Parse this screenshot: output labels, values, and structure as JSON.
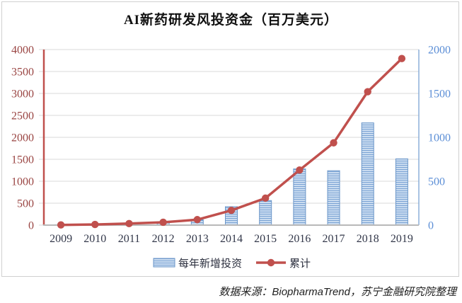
{
  "title": "AI新药研发风投资金（百万美元）",
  "source_note": "数据来源：BiopharmaTrend，苏宁金融研究院整理",
  "legend": {
    "bar_label": "每年新增投资",
    "line_label": "累计"
  },
  "colors": {
    "background": "#ffffff",
    "card_border": "#d0d0d0",
    "title_text": "#111111",
    "left_axis_text": "#9a4543",
    "right_axis_text": "#5b8ed6",
    "x_axis_text": "#33384a",
    "legend_text": "#2b2f3e",
    "source_text": "#1f1f1f",
    "gridline": "#d9d9d9",
    "left_axis_line": "#c0504d",
    "bottom_axis_line": "#b9b9b9",
    "plot_right_border": "#7ba3d4",
    "line": "#c0504d",
    "bar_light": "#cadcf0",
    "bar_dark": "#7ba3d4",
    "bar_border": "#6b96c9"
  },
  "chart_data": {
    "type": "combo-bar-line",
    "title": "AI新药研发风投资金（百万美元）",
    "categories": [
      "2009",
      "2010",
      "2011",
      "2012",
      "2013",
      "2014",
      "2015",
      "2016",
      "2017",
      "2018",
      "2019"
    ],
    "series": [
      {
        "name": "每年新增投资",
        "type": "bar",
        "axis": "right",
        "values": [
          5,
          10,
          20,
          30,
          60,
          210,
          280,
          640,
          620,
          1165,
          755
        ]
      },
      {
        "name": "累计",
        "type": "line",
        "axis": "left",
        "values": [
          5,
          15,
          35,
          65,
          125,
          335,
          615,
          1255,
          1875,
          3040,
          3795
        ]
      }
    ],
    "left_axis": {
      "min": 0,
      "max": 4000,
      "step": 500,
      "ticks": [
        0,
        500,
        1000,
        1500,
        2000,
        2500,
        3000,
        3500,
        4000
      ]
    },
    "right_axis": {
      "min": 0,
      "max": 2000,
      "step": 500,
      "ticks": [
        0,
        500,
        1000,
        1500,
        2000
      ]
    },
    "grid": true,
    "legend_position": "bottom",
    "units": "百万美元"
  }
}
